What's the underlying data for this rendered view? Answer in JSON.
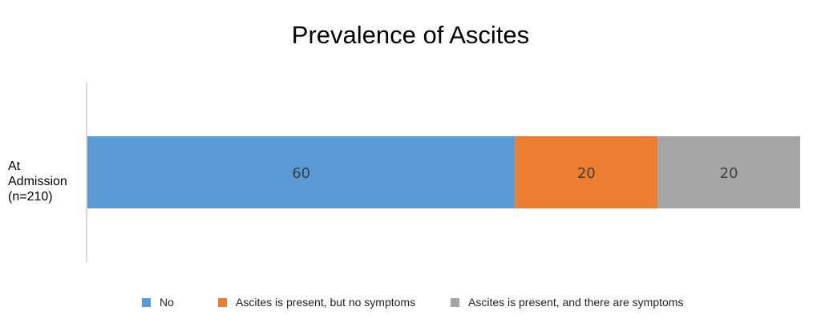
{
  "chart_data": {
    "type": "bar",
    "orientation": "horizontal",
    "stacked": true,
    "title": "Prevalence of Ascites",
    "categories": [
      "At Admission (n=210)"
    ],
    "category_label_lines": [
      "At",
      "Admission",
      "(n=210)"
    ],
    "series": [
      {
        "name": "No",
        "values": [
          60
        ],
        "color": "#5b9bd5"
      },
      {
        "name": "Ascites is present, but no symptoms",
        "values": [
          20
        ],
        "color": "#ed7d31"
      },
      {
        "name": "Ascites is present, and there are symptoms",
        "values": [
          20
        ],
        "color": "#a5a5a5"
      }
    ],
    "xlim": [
      0,
      100
    ],
    "data_labels": true,
    "legend_position": "bottom",
    "grid": false
  }
}
